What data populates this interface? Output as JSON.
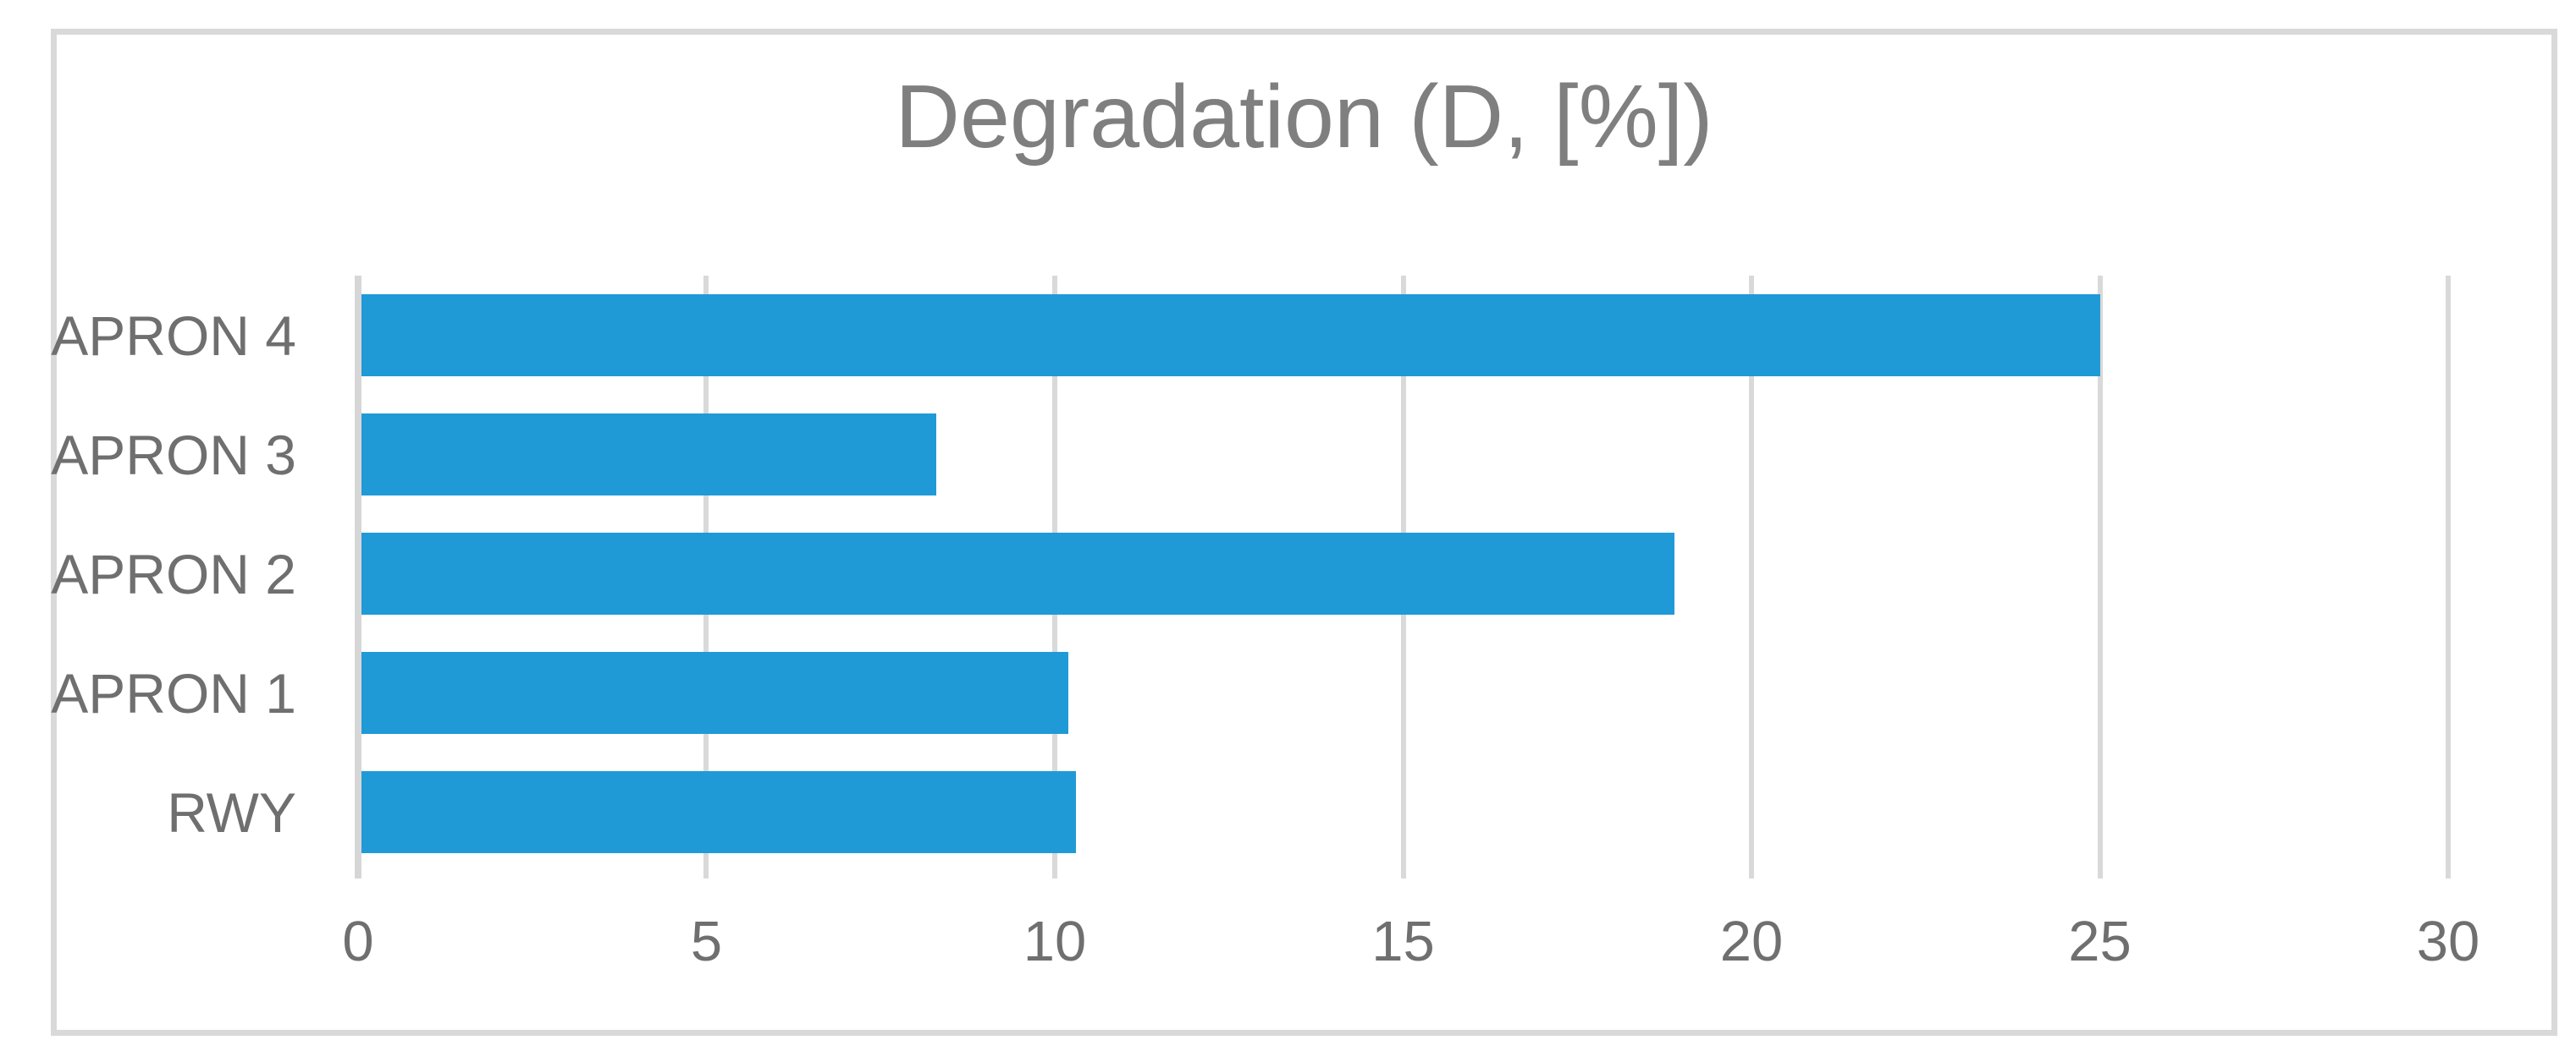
{
  "chart_data": {
    "type": "bar",
    "orientation": "horizontal",
    "title": "Degradation (D, [%])",
    "categories": [
      "APRON 4",
      "APRON 3",
      "APRON 2",
      "APRON 1",
      "RWY"
    ],
    "values": [
      25.0,
      8.3,
      18.9,
      10.2,
      10.3
    ],
    "x_ticks": [
      0,
      5,
      10,
      15,
      20,
      25,
      30
    ],
    "xlim": [
      0,
      30
    ],
    "grid": true,
    "legend": false,
    "colors": {
      "bar": "#1F9AD7",
      "gridline": "#D9D9D9",
      "axis_line": "#D6D6D6",
      "title_text": "#7F7F7F",
      "label_text": "#6F6F6F",
      "frame_border": "#D9D9D9",
      "background": "#FFFFFF"
    }
  }
}
